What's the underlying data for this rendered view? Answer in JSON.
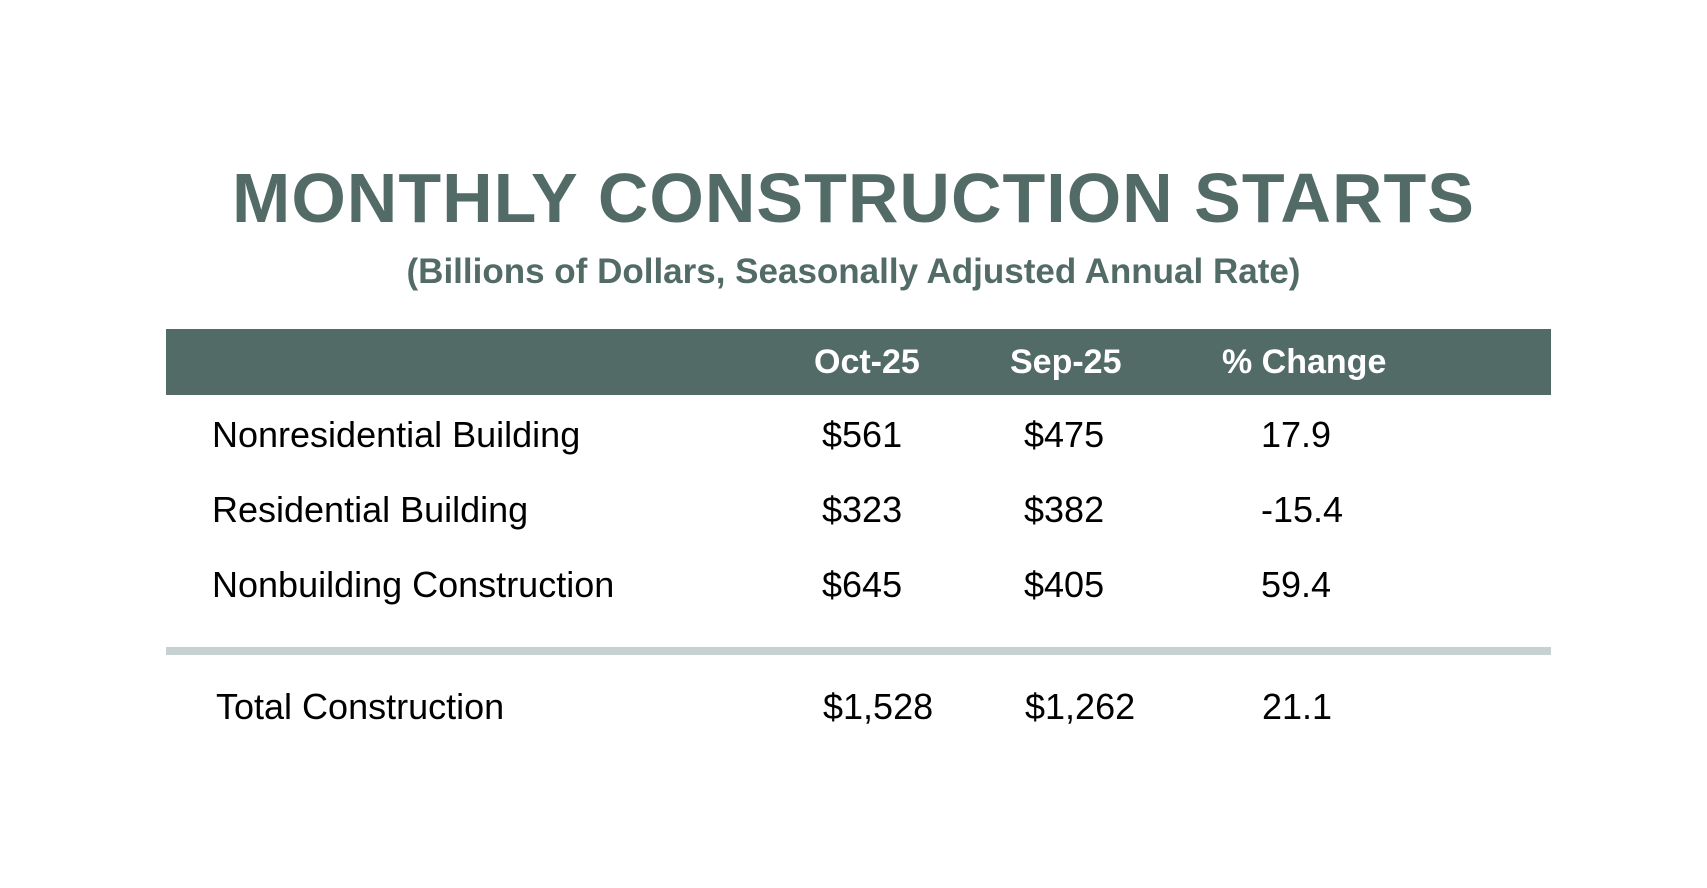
{
  "chart_data": {
    "type": "table",
    "title": "MONTHLY CONSTRUCTION STARTS",
    "subtitle": "(Billions of Dollars, Seasonally Adjusted Annual Rate)",
    "columns": [
      "",
      "Oct-25",
      "Sep-25",
      "% Change"
    ],
    "rows": [
      {
        "category": "Nonresidential Building",
        "oct": "$561",
        "sep": "$475",
        "change": "17.9"
      },
      {
        "category": "Residential Building",
        "oct": "$323",
        "sep": "$382",
        "change": "-15.4"
      },
      {
        "category": "Nonbuilding Construction",
        "oct": "$645",
        "sep": "$405",
        "change": "59.4"
      }
    ],
    "total": {
      "category": "Total Construction",
      "oct": "$1,528",
      "sep": "$1,262",
      "change": "21.1"
    }
  },
  "colors": {
    "accent": "#536b67",
    "divider": "#c5d2d1",
    "text": "#000000",
    "header_text": "#ffffff"
  }
}
